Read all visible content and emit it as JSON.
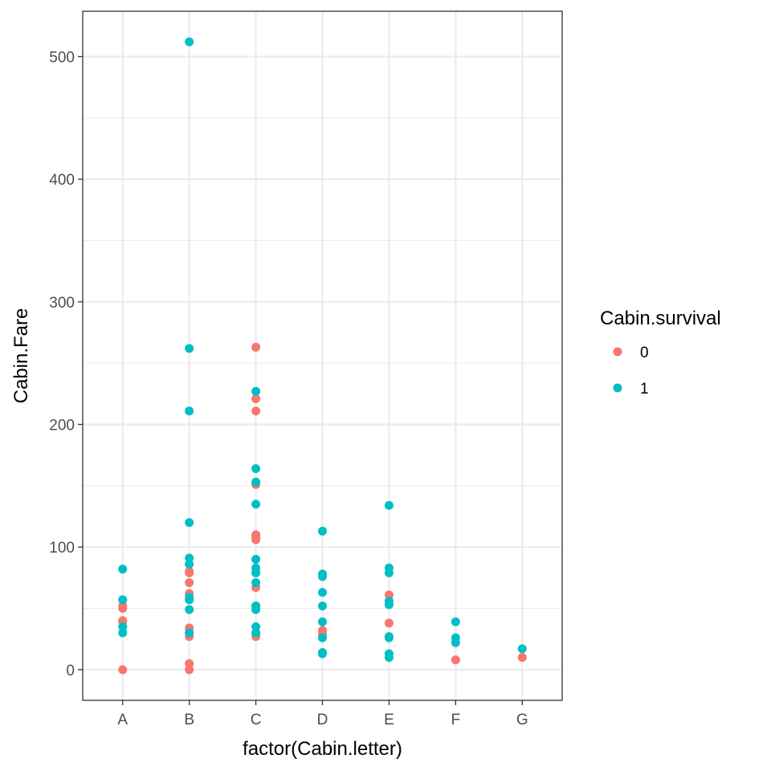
{
  "chart_data": {
    "type": "scatter",
    "xlabel": "factor(Cabin.letter)",
    "ylabel": "Cabin.Fare",
    "categories": [
      "A",
      "B",
      "C",
      "D",
      "E",
      "F",
      "G"
    ],
    "ylim": [
      -25,
      537
    ],
    "y_ticks": [
      0,
      100,
      200,
      300,
      400,
      500
    ],
    "grid": true,
    "legend": {
      "title": "Cabin.survival",
      "position": "right",
      "entries": [
        {
          "label": "0",
          "color": "#F8766D"
        },
        {
          "label": "1",
          "color": "#00BFC4"
        }
      ]
    },
    "series": [
      {
        "name": "0",
        "color": "#F8766D",
        "points": [
          [
            "A",
            0
          ],
          [
            "A",
            40
          ],
          [
            "A",
            39
          ],
          [
            "A",
            50
          ],
          [
            "A",
            52
          ],
          [
            "B",
            0
          ],
          [
            "B",
            5
          ],
          [
            "B",
            27
          ],
          [
            "B",
            30
          ],
          [
            "B",
            34
          ],
          [
            "B",
            62
          ],
          [
            "B",
            71
          ],
          [
            "B",
            79
          ],
          [
            "B",
            80
          ],
          [
            "B",
            86
          ],
          [
            "C",
            27
          ],
          [
            "C",
            29
          ],
          [
            "C",
            52
          ],
          [
            "C",
            67
          ],
          [
            "C",
            79
          ],
          [
            "C",
            106
          ],
          [
            "C",
            108
          ],
          [
            "C",
            110
          ],
          [
            "C",
            151
          ],
          [
            "C",
            211
          ],
          [
            "C",
            221
          ],
          [
            "C",
            263
          ],
          [
            "D",
            29
          ],
          [
            "D",
            32
          ],
          [
            "E",
            38
          ],
          [
            "E",
            61
          ],
          [
            "F",
            8
          ],
          [
            "G",
            10
          ]
        ]
      },
      {
        "name": "1",
        "color": "#00BFC4",
        "points": [
          [
            "A",
            30
          ],
          [
            "A",
            35
          ],
          [
            "A",
            57
          ],
          [
            "A",
            82
          ],
          [
            "B",
            30
          ],
          [
            "B",
            49
          ],
          [
            "B",
            57
          ],
          [
            "B",
            59
          ],
          [
            "B",
            86
          ],
          [
            "B",
            91
          ],
          [
            "B",
            120
          ],
          [
            "B",
            211
          ],
          [
            "B",
            262
          ],
          [
            "B",
            512
          ],
          [
            "C",
            30
          ],
          [
            "C",
            35
          ],
          [
            "C",
            49
          ],
          [
            "C",
            52
          ],
          [
            "C",
            71
          ],
          [
            "C",
            79
          ],
          [
            "C",
            83
          ],
          [
            "C",
            90
          ],
          [
            "C",
            135
          ],
          [
            "C",
            153
          ],
          [
            "C",
            164
          ],
          [
            "C",
            227
          ],
          [
            "D",
            13
          ],
          [
            "D",
            14
          ],
          [
            "D",
            26
          ],
          [
            "D",
            39
          ],
          [
            "D",
            52
          ],
          [
            "D",
            63
          ],
          [
            "D",
            76
          ],
          [
            "D",
            78
          ],
          [
            "D",
            113
          ],
          [
            "E",
            10
          ],
          [
            "E",
            13
          ],
          [
            "E",
            26
          ],
          [
            "E",
            27
          ],
          [
            "E",
            53
          ],
          [
            "E",
            56
          ],
          [
            "E",
            79
          ],
          [
            "E",
            83
          ],
          [
            "E",
            134
          ],
          [
            "F",
            22
          ],
          [
            "F",
            26
          ],
          [
            "F",
            39
          ],
          [
            "G",
            17
          ]
        ]
      }
    ]
  }
}
